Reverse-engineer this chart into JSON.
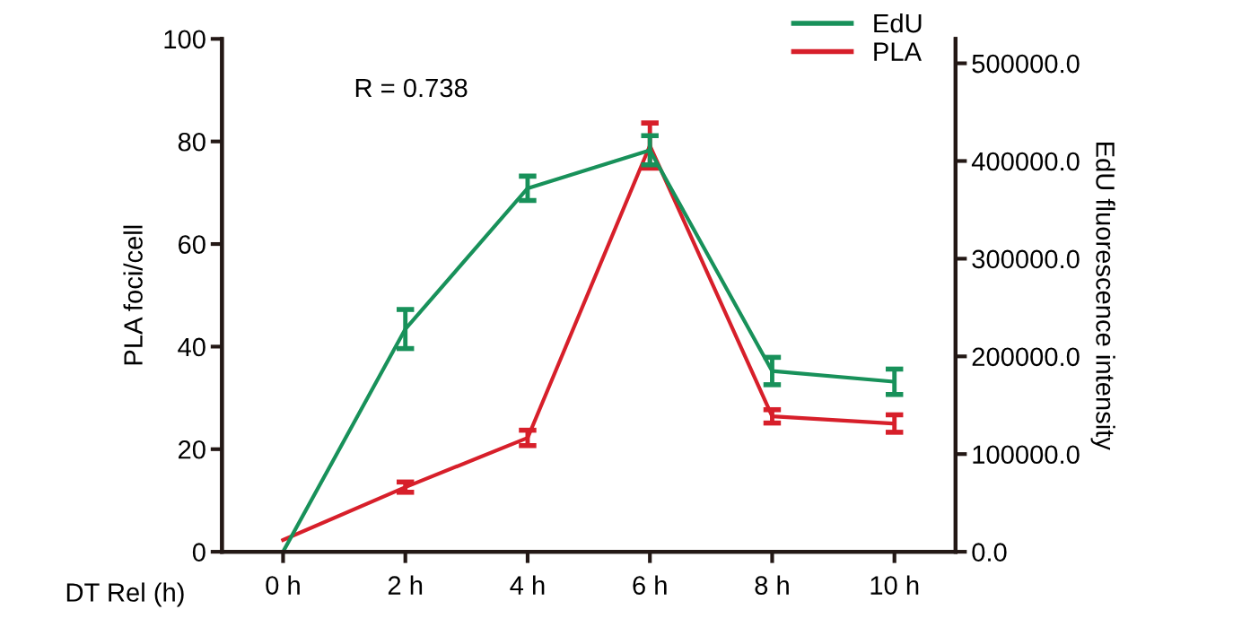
{
  "chart_data": {
    "type": "line",
    "xlabel": "DT Rel (h)",
    "ylabel": "PLA foci/cell",
    "y2label": "EdU fluorescence intensity",
    "categories": [
      "0 h",
      "2 h",
      "4 h",
      "6 h",
      "8 h",
      "10 h"
    ],
    "series": [
      {
        "name": "EdU",
        "color": "#18915a",
        "axis": "y2",
        "values": [
          0,
          228000,
          372000,
          411000,
          185000,
          174000
        ],
        "errors": [
          null,
          20000,
          12500,
          15000,
          14000,
          13000
        ]
      },
      {
        "name": "PLA",
        "color": "#d71f2a",
        "values": [
          2.3,
          12.6,
          22.2,
          79.2,
          26.4,
          25
        ],
        "errors": [
          null,
          1,
          1.5,
          4.4,
          1.3,
          1.7
        ]
      }
    ],
    "ylim": [
      0,
      100
    ],
    "yticks": [
      0,
      20,
      40,
      60,
      80,
      100
    ],
    "y2lim": [
      0,
      525000
    ],
    "y2ticks": [
      {
        "value": 0,
        "label": "0.0"
      },
      {
        "value": 100000,
        "label": "100000.0"
      },
      {
        "value": 200000,
        "label": "200000.0"
      },
      {
        "value": 300000,
        "label": "300000.0"
      },
      {
        "value": 400000,
        "label": "400000.0"
      },
      {
        "value": 500000,
        "label": "500000.0"
      }
    ],
    "annotations": [
      "R = 0.738"
    ],
    "legend": "top right",
    "grid": false
  }
}
